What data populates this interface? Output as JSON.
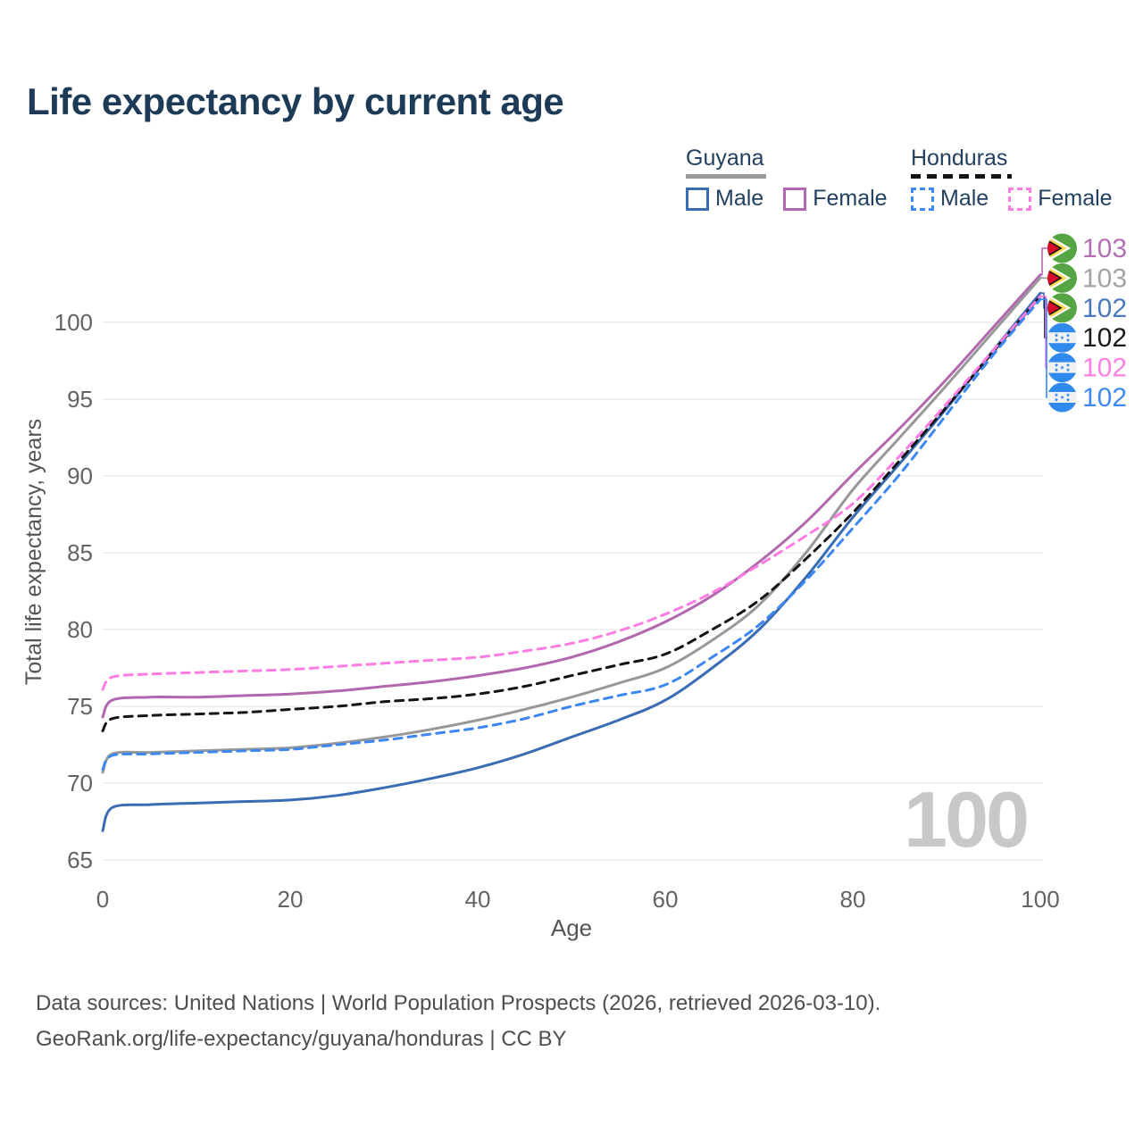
{
  "title": "Life expectancy by current age",
  "watermark": "100",
  "legend": {
    "groups": [
      {
        "country": "Guyana",
        "underline_color": "#9a9a9a",
        "dashed": false,
        "items": [
          {
            "label": "Male",
            "color": "#3a6cb4",
            "dashed": false
          },
          {
            "label": "Female",
            "color": "#b168af",
            "dashed": false
          }
        ]
      },
      {
        "country": "Honduras",
        "underline_color": "#141414",
        "dashed": true,
        "items": [
          {
            "label": "Male",
            "color": "#3c87f2",
            "dashed": true
          },
          {
            "label": "Female",
            "color": "#ff7ce2",
            "dashed": true
          }
        ]
      }
    ]
  },
  "footer": {
    "line1": "Data sources: United Nations | World Population Prospects (2026, retrieved 2026-03-10).",
    "line2": "GeoRank.org/life-expectancy/guyana/honduras | CC BY"
  },
  "chart_data": {
    "type": "line",
    "title": "Life expectancy by current age",
    "xlabel": "Age",
    "ylabel": "Total life expectancy, years",
    "xlim": [
      0,
      100
    ],
    "ylim": [
      63.5,
      104
    ],
    "xticks": [
      0,
      20,
      40,
      60,
      80,
      100
    ],
    "yticks": [
      65,
      70,
      75,
      80,
      85,
      90,
      95,
      100
    ],
    "grid": "horizontal-only",
    "legend_position": "top-right",
    "x": [
      0,
      1,
      5,
      10,
      15,
      20,
      25,
      30,
      35,
      40,
      45,
      50,
      55,
      60,
      65,
      70,
      75,
      80,
      85,
      90,
      95,
      100
    ],
    "series": [
      {
        "name": "Guyana Female",
        "country": "Guyana",
        "sex": "Female",
        "color": "#b168af",
        "label_color": "#b570b5",
        "dashed": false,
        "flag": "guyana",
        "end_label": "103",
        "values": [
          74.3,
          75.4,
          75.6,
          75.6,
          75.7,
          75.8,
          76.0,
          76.3,
          76.6,
          77.0,
          77.5,
          78.2,
          79.2,
          80.5,
          82.2,
          84.4,
          87.0,
          90.1,
          93.1,
          96.3,
          99.7,
          103.1
        ]
      },
      {
        "name": "Guyana (both sexes)",
        "country": "Guyana",
        "sex": "Both sexes",
        "color": "#989898",
        "label_color": "#a3a3a3",
        "dashed": false,
        "flag": "guyana",
        "end_label": "103",
        "values": [
          70.7,
          71.9,
          72.0,
          72.1,
          72.2,
          72.3,
          72.6,
          73.0,
          73.5,
          74.1,
          74.8,
          75.6,
          76.5,
          77.5,
          79.3,
          81.6,
          85.0,
          89.1,
          92.5,
          95.9,
          99.4,
          102.9
        ]
      },
      {
        "name": "Guyana Male",
        "country": "Guyana",
        "sex": "Male",
        "color": "#3a6cb4",
        "label_color": "#4a79bd",
        "dashed": false,
        "flag": "guyana",
        "end_label": "102",
        "values": [
          66.9,
          68.4,
          68.6,
          68.7,
          68.8,
          68.9,
          69.2,
          69.7,
          70.3,
          71.0,
          71.9,
          73.0,
          74.1,
          75.4,
          77.5,
          80.0,
          83.4,
          87.3,
          90.8,
          94.4,
          98.2,
          101.9
        ]
      },
      {
        "name": "Honduras (both sexes)",
        "country": "Honduras",
        "sex": "Both sexes",
        "color": "#141414",
        "label_color": "#1a1a1a",
        "dashed": true,
        "flag": "honduras",
        "end_label": "102",
        "values": [
          73.4,
          74.2,
          74.4,
          74.5,
          74.6,
          74.8,
          75.0,
          75.3,
          75.5,
          75.8,
          76.3,
          77.0,
          77.7,
          78.4,
          80.0,
          81.9,
          84.6,
          87.6,
          91.0,
          94.5,
          98.1,
          101.7
        ]
      },
      {
        "name": "Honduras Female",
        "country": "Honduras",
        "sex": "Female",
        "color": "#ff7ce2",
        "label_color": "#ff80e5",
        "dashed": true,
        "flag": "honduras",
        "end_label": "102",
        "values": [
          76.1,
          76.9,
          77.1,
          77.2,
          77.3,
          77.4,
          77.6,
          77.8,
          78.0,
          78.2,
          78.6,
          79.1,
          79.9,
          81.0,
          82.4,
          84.2,
          86.1,
          88.2,
          91.3,
          94.7,
          98.2,
          101.7
        ]
      },
      {
        "name": "Honduras Male",
        "country": "Honduras",
        "sex": "Male",
        "color": "#3c87f2",
        "label_color": "#3f8af2",
        "dashed": true,
        "flag": "honduras",
        "end_label": "102",
        "values": [
          70.9,
          71.8,
          71.9,
          72.0,
          72.1,
          72.2,
          72.5,
          72.8,
          73.2,
          73.6,
          74.2,
          75.0,
          75.7,
          76.4,
          78.2,
          80.3,
          83.2,
          86.6,
          90.1,
          94.0,
          97.9,
          101.5
        ]
      }
    ],
    "flag_colors": {
      "guyana": {
        "green": "#55a544",
        "yellow": "#ffd84f",
        "red": "#d80b2b",
        "yellow_border": "#ffffff",
        "red_border": "#151515"
      },
      "honduras": {
        "blue": "#3089ec",
        "white": "#f2f2f2"
      }
    },
    "gridline_color": "#ebebeb",
    "tick_color": "#636363",
    "axis_title_color": "#555555"
  }
}
